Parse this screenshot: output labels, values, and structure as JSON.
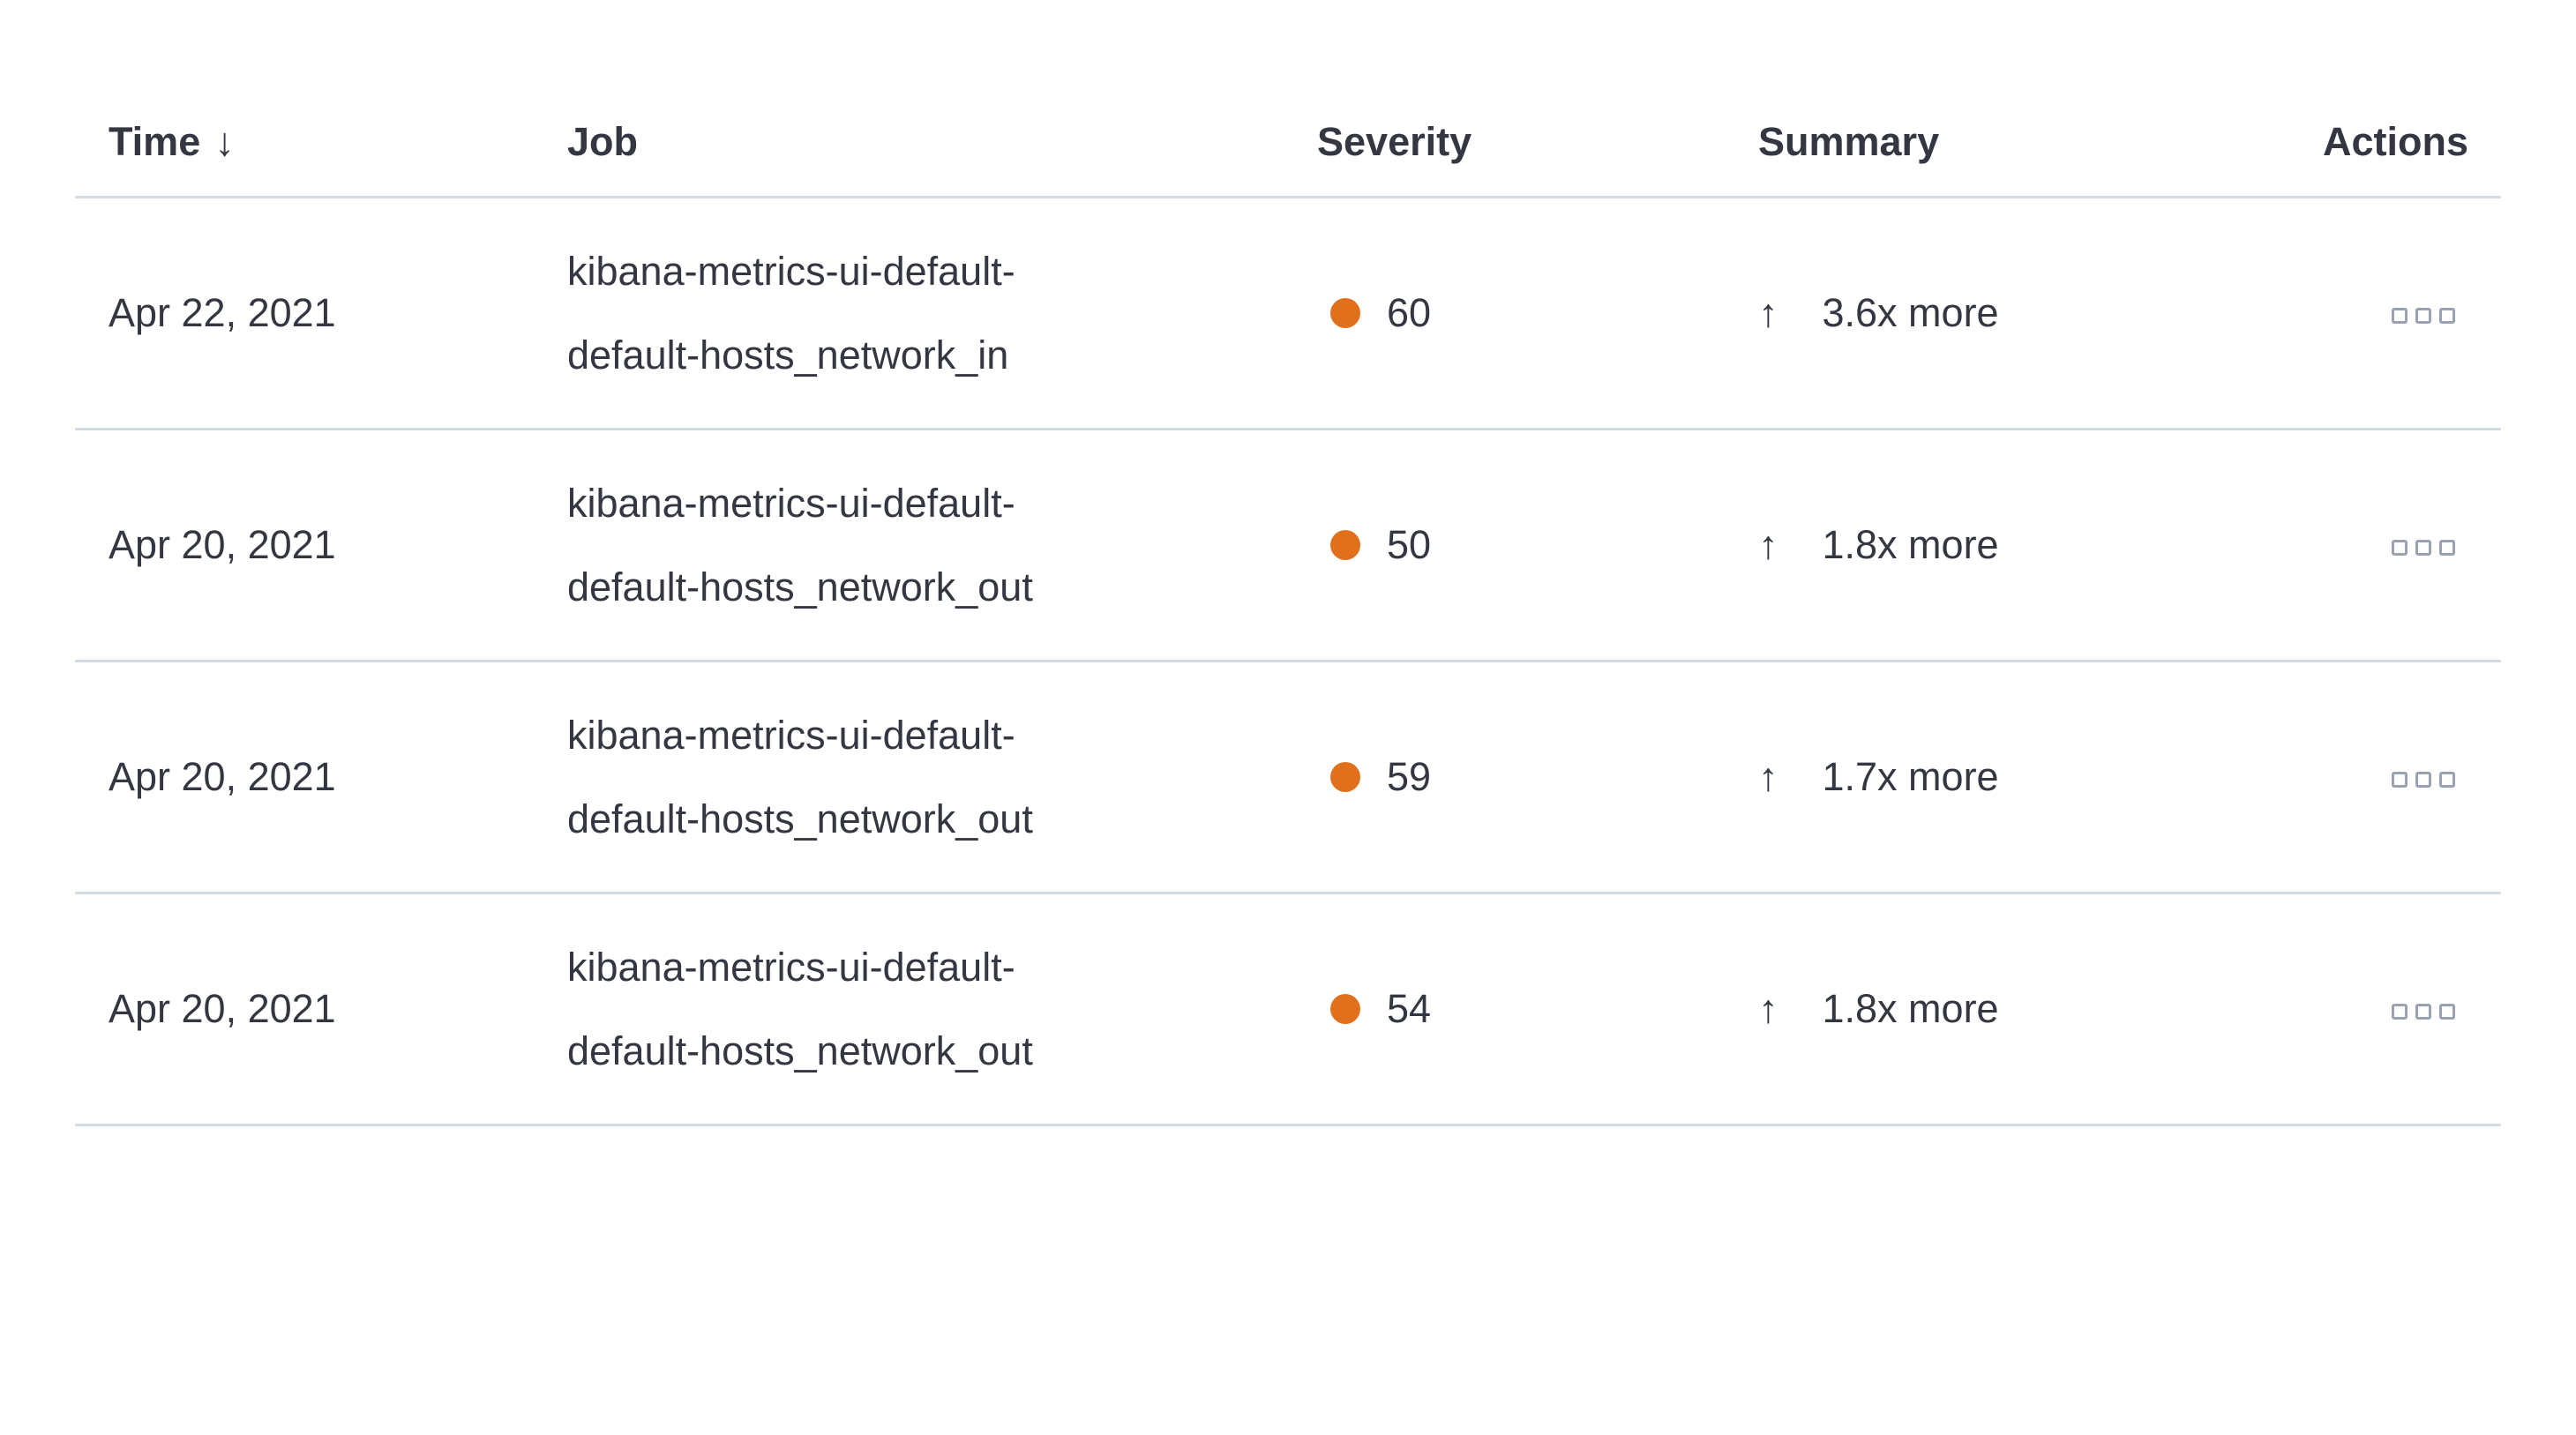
{
  "table": {
    "columns": {
      "time": "Time",
      "job": "Job",
      "severity": "Severity",
      "summary": "Summary",
      "actions": "Actions"
    },
    "sort": {
      "column": "Time",
      "direction": "desc"
    },
    "glyphs": {
      "sort_desc_arrow": "↓",
      "increase_arrow": "↑"
    },
    "colors": {
      "text": "#343741",
      "row_divider": "#d3dae6",
      "severity_dot": "#e1701d",
      "actions_icon": "#98a2b3"
    },
    "rows": [
      {
        "time": "Apr 22, 2021",
        "job": "kibana-metrics-ui-default-default-hosts_network_in",
        "severity": "60",
        "summary": "3.6x more"
      },
      {
        "time": "Apr 20, 2021",
        "job": "kibana-metrics-ui-default-default-hosts_network_out",
        "severity": "50",
        "summary": "1.8x more"
      },
      {
        "time": "Apr 20, 2021",
        "job": "kibana-metrics-ui-default-default-hosts_network_out",
        "severity": "59",
        "summary": "1.7x more"
      },
      {
        "time": "Apr 20, 2021",
        "job": "kibana-metrics-ui-default-default-hosts_network_out",
        "severity": "54",
        "summary": "1.8x more"
      }
    ]
  }
}
